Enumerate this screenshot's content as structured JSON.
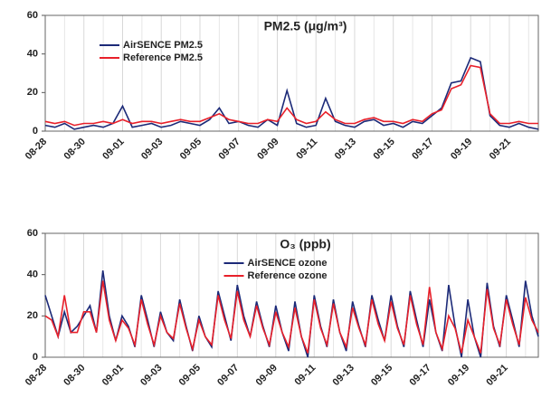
{
  "chart_data": [
    {
      "type": "line",
      "title": "PM2.5 (μg/m³)",
      "legend": "upper left",
      "categories": [
        "08-28",
        null,
        null,
        null,
        "08-30",
        null,
        null,
        null,
        "09-01",
        null,
        null,
        null,
        "09-03",
        null,
        null,
        null,
        "09-05",
        null,
        null,
        null,
        "09-07",
        null,
        null,
        null,
        "09-09",
        null,
        null,
        null,
        "09-11",
        null,
        null,
        null,
        "09-13",
        null,
        null,
        null,
        "09-15",
        null,
        null,
        null,
        "09-17",
        null,
        null,
        null,
        "09-19",
        null,
        null,
        null,
        "09-21",
        null,
        null,
        null
      ],
      "series": [
        {
          "name": "AirSENCE PM2.5",
          "color": "#1c2a78",
          "values": [
            3,
            2,
            4,
            1,
            2,
            3,
            2,
            4,
            13,
            2,
            3,
            4,
            2,
            3,
            5,
            4,
            3,
            6,
            12,
            4,
            5,
            3,
            2,
            6,
            3,
            21,
            4,
            2,
            3,
            17,
            5,
            3,
            2,
            5,
            6,
            3,
            4,
            2,
            5,
            4,
            8,
            12,
            25,
            26,
            38,
            36,
            8,
            3,
            2,
            4,
            2,
            1
          ]
        },
        {
          "name": "Reference PM2.5",
          "color": "#e8202a",
          "values": [
            5,
            4,
            5,
            3,
            4,
            4,
            5,
            4,
            6,
            4,
            5,
            5,
            4,
            5,
            6,
            5,
            5,
            7,
            9,
            6,
            5,
            4,
            4,
            6,
            5,
            12,
            6,
            4,
            5,
            10,
            6,
            4,
            4,
            6,
            7,
            5,
            5,
            4,
            6,
            5,
            9,
            11,
            22,
            24,
            34,
            33,
            9,
            4,
            4,
            5,
            4,
            4
          ]
        }
      ],
      "ylim": [
        0,
        60
      ],
      "yticks": [
        0,
        20,
        40,
        60
      ],
      "grid": true
    },
    {
      "type": "line",
      "title": "O₃ (ppb)",
      "legend": "upper center",
      "categories": [
        "08-28",
        null,
        null,
        null,
        null,
        null,
        "08-30",
        null,
        null,
        null,
        null,
        null,
        "09-01",
        null,
        null,
        null,
        null,
        null,
        "09-03",
        null,
        null,
        null,
        null,
        null,
        "09-05",
        null,
        null,
        null,
        null,
        null,
        "09-07",
        null,
        null,
        null,
        null,
        null,
        "09-09",
        null,
        null,
        null,
        null,
        null,
        "09-11",
        null,
        null,
        null,
        null,
        null,
        "09-13",
        null,
        null,
        null,
        null,
        null,
        "09-15",
        null,
        null,
        null,
        null,
        null,
        "09-17",
        null,
        null,
        null,
        null,
        null,
        "09-19",
        null,
        null,
        null,
        null,
        null,
        "09-21",
        null,
        null,
        null,
        null,
        null
      ],
      "series": [
        {
          "name": "AirSENCE ozone",
          "color": "#1c2a78",
          "values": [
            30,
            20,
            10,
            22,
            12,
            15,
            20,
            25,
            12,
            42,
            20,
            8,
            20,
            15,
            5,
            30,
            18,
            5,
            22,
            12,
            8,
            28,
            15,
            3,
            20,
            10,
            5,
            32,
            20,
            8,
            35,
            20,
            10,
            27,
            15,
            5,
            25,
            12,
            3,
            27,
            10,
            0,
            30,
            15,
            5,
            28,
            12,
            3,
            27,
            15,
            5,
            30,
            18,
            8,
            30,
            15,
            5,
            32,
            18,
            5,
            28,
            12,
            3,
            35,
            15,
            0,
            28,
            10,
            0,
            36,
            15,
            5,
            30,
            18,
            5,
            37,
            20,
            10
          ]
        },
        {
          "name": "Reference ozone",
          "color": "#e8202a",
          "values": [
            20,
            18,
            10,
            30,
            12,
            12,
            22,
            22,
            12,
            37,
            18,
            8,
            18,
            14,
            6,
            28,
            16,
            6,
            20,
            12,
            9,
            26,
            14,
            4,
            18,
            10,
            6,
            30,
            18,
            9,
            32,
            18,
            10,
            25,
            14,
            6,
            22,
            12,
            5,
            24,
            10,
            2,
            28,
            14,
            6,
            26,
            12,
            5,
            24,
            14,
            6,
            28,
            16,
            8,
            27,
            14,
            6,
            30,
            16,
            6,
            34,
            12,
            4,
            20,
            14,
            2,
            18,
            10,
            2,
            33,
            14,
            6,
            28,
            16,
            6,
            29,
            18,
            12
          ]
        }
      ],
      "ylim": [
        0,
        60
      ],
      "yticks": [
        0,
        20,
        40,
        60
      ],
      "grid": true
    }
  ]
}
